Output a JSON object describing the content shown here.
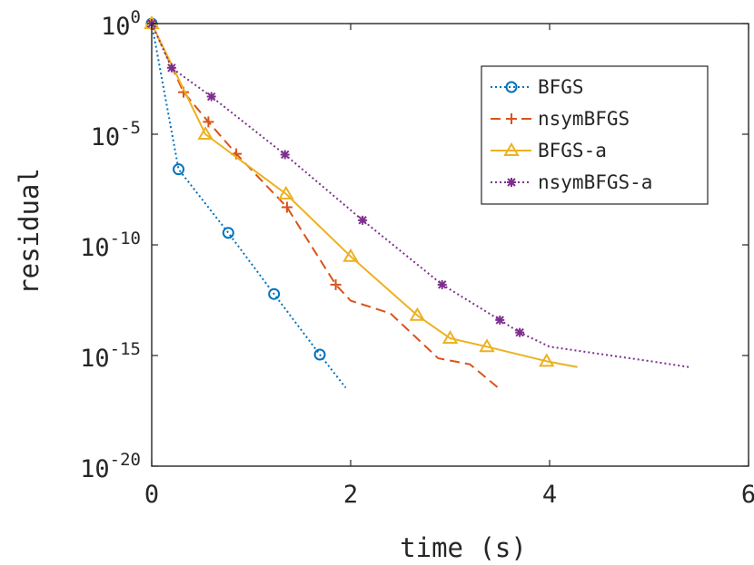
{
  "chart_data": {
    "type": "line",
    "xlabel": "time (s)",
    "ylabel": "residual",
    "y_scale": "log",
    "xlim": [
      0,
      6
    ],
    "ylim": [
      1e-20,
      1
    ],
    "x_ticks": [
      0,
      2,
      4,
      6
    ],
    "x_tick_labels": [
      "0",
      "2",
      "4",
      "6"
    ],
    "y_ticks": [
      1e-20,
      1e-15,
      1e-10,
      1e-05,
      1
    ],
    "y_tick_labels": [
      {
        "base": "10",
        "exp": "-20"
      },
      {
        "base": "10",
        "exp": "-15"
      },
      {
        "base": "10",
        "exp": "-10"
      },
      {
        "base": "10",
        "exp": "-5"
      },
      {
        "base": "10",
        "exp": "0"
      }
    ],
    "grid": false,
    "legend_position": "top-right",
    "series": [
      {
        "name": "BFGS",
        "color": "#0072BD",
        "line_style": "dotted",
        "marker": "circle",
        "points": [
          [
            0,
            1
          ],
          [
            0.27,
            2.6e-07
          ],
          [
            0.77,
            3.5e-10
          ],
          [
            1.23,
            6e-13
          ],
          [
            1.69,
            1.1e-15
          ],
          [
            1.95,
            3.5e-17
          ]
        ],
        "marker_count": 5
      },
      {
        "name": "nsymBFGS",
        "color": "#D95319",
        "line_style": "dashed",
        "marker": "plus",
        "points": [
          [
            0,
            1
          ],
          [
            0.32,
            0.0008
          ],
          [
            0.57,
            3.6e-05
          ],
          [
            0.85,
            1.3e-06
          ],
          [
            1.36,
            5e-09
          ],
          [
            1.85,
            1.6e-12
          ],
          [
            2.0,
            3e-13
          ],
          [
            2.4,
            8e-14
          ],
          [
            2.88,
            7.5e-16
          ],
          [
            3.2,
            4e-16
          ],
          [
            3.5,
            3e-17
          ]
        ],
        "marker_count": 6
      },
      {
        "name": "BFGS-a",
        "color": "#EDB120",
        "line_style": "solid",
        "marker": "triangle",
        "points": [
          [
            0,
            1
          ],
          [
            0.54,
            1e-05
          ],
          [
            1.35,
            2e-08
          ],
          [
            2.0,
            3e-11
          ],
          [
            2.67,
            6.5e-14
          ],
          [
            3.0,
            6e-15
          ],
          [
            3.37,
            2.5e-15
          ],
          [
            3.97,
            5.5e-16
          ],
          [
            4.28,
            3e-16
          ]
        ],
        "marker_count": 8
      },
      {
        "name": "nsymBFGS-a",
        "color": "#7E2F8E",
        "line_style": "dotted",
        "marker": "asterisk",
        "points": [
          [
            0,
            1
          ],
          [
            0.2,
            0.01
          ],
          [
            0.6,
            0.0005
          ],
          [
            1.34,
            1.2e-06
          ],
          [
            2.12,
            1.3e-09
          ],
          [
            2.92,
            1.6e-12
          ],
          [
            3.5,
            4e-14
          ],
          [
            3.7,
            1.1e-14
          ],
          [
            4.0,
            2.5e-15
          ],
          [
            5.08,
            5e-16
          ],
          [
            5.4,
            3e-16
          ]
        ],
        "marker_count": 8
      }
    ]
  }
}
